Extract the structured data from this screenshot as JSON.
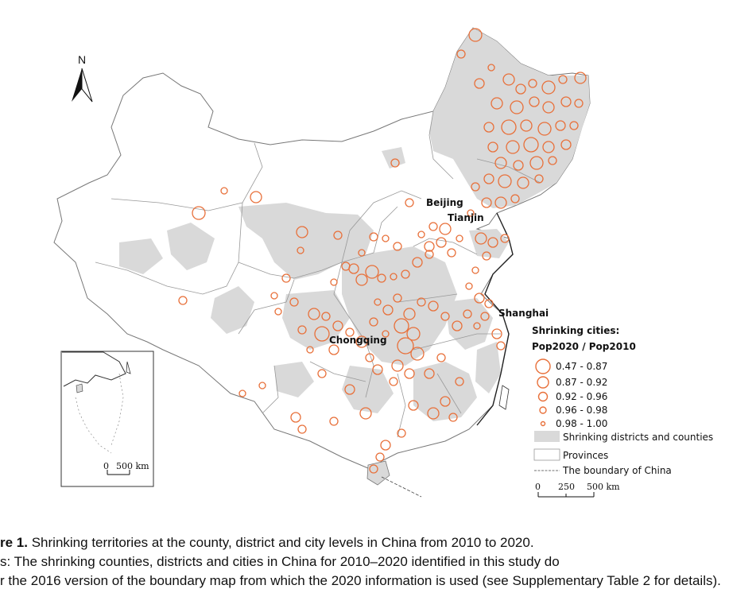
{
  "map": {
    "north_label": "N",
    "city_labels": {
      "beijing": "Beijing",
      "tianjin": "Tianjin",
      "shanghai": "Shanghai",
      "chongqing": "Chongqing"
    },
    "inset_scale": {
      "zero": "0",
      "distance": "500 km"
    },
    "main_scale": {
      "zero": "0",
      "mid": "250",
      "distance": "500 km"
    }
  },
  "legend": {
    "title_line1": "Shrinking cities:",
    "title_line2": "Pop2020 / Pop2010",
    "classes": [
      {
        "label": "0.47 - 0.87"
      },
      {
        "label": "0.87 - 0.92"
      },
      {
        "label": "0.92 - 0.96"
      },
      {
        "label": "0.96 - 0.98"
      },
      {
        "label": "0.98 - 1.00"
      }
    ],
    "shrinking_areas": "Shrinking districts and counties",
    "provinces": "Provinces",
    "boundary": "The boundary of China"
  },
  "colors": {
    "circle": "#e8703a",
    "shrinking_fill": "#d9d9d9",
    "outline": "#777777"
  },
  "caption": {
    "line1_label": "re 1.",
    "line1_text": "Shrinking territories at the county, district and city levels in China from 2010 to 2020.",
    "line2_text": "s: The shrinking counties, districts and cities in China for 2010–2020 identified in this study do",
    "line3_text": "r the 2016 version of the boundary map from which the 2020 information is used (see Supplementary Table 2 for details)."
  }
}
